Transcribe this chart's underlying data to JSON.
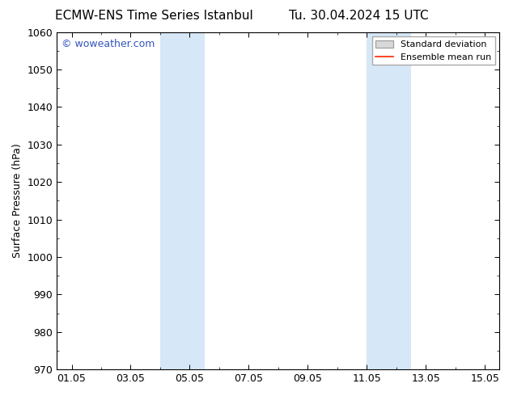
{
  "title_left": "ECMW-ENS Time Series Istanbul",
  "title_right": "Tu. 30.04.2024 15 UTC",
  "ylabel": "Surface Pressure (hPa)",
  "ylim": [
    970,
    1060
  ],
  "yticks": [
    970,
    980,
    990,
    1000,
    1010,
    1020,
    1030,
    1040,
    1050,
    1060
  ],
  "xtick_labels": [
    "01.05",
    "03.05",
    "05.05",
    "07.05",
    "09.05",
    "11.05",
    "13.05",
    "15.05"
  ],
  "xtick_positions": [
    1,
    3,
    5,
    7,
    9,
    11,
    13,
    15
  ],
  "xlim": [
    0.5,
    15.5
  ],
  "shaded_bands": [
    {
      "x_start": 4.0,
      "x_end": 4.75
    },
    {
      "x_start": 4.75,
      "x_end": 5.5
    },
    {
      "x_start": 11.0,
      "x_end": 11.75
    },
    {
      "x_start": 11.75,
      "x_end": 12.5
    }
  ],
  "shaded_color": "#d6e8f7",
  "background_color": "#ffffff",
  "watermark_text": "© woweather.com",
  "watermark_color": "#3355bb",
  "legend_std_label": "Standard deviation",
  "legend_ens_label": "Ensemble mean run",
  "legend_std_facecolor": "#d8d8d8",
  "legend_std_edgecolor": "#999999",
  "legend_ens_color": "#ff2200",
  "title_fontsize": 11,
  "axis_label_fontsize": 9,
  "tick_fontsize": 9,
  "watermark_fontsize": 9,
  "legend_fontsize": 8
}
